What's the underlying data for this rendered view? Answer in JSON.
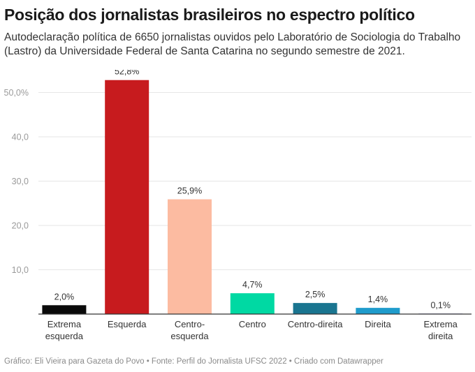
{
  "header": {
    "title": "Posição dos jornalistas brasileiros no espectro político",
    "subtitle": "Autodeclaração política de 6650 jornalistas ouvidos pelo Laboratório de Sociologia do Trabalho (Lastro) da Universidade Federal de Santa Catarina no segundo semestre de 2021."
  },
  "footer": {
    "credit": "Gráfico: Eli Vieira para Gazeta do Povo • Fonte: Perfil do Jornalista UFSC 2022 • Criado com Datawrapper"
  },
  "chart_data": {
    "type": "bar",
    "title": "Posição dos jornalistas brasileiros no espectro político",
    "xlabel": "",
    "ylabel": "",
    "ylim": [
      0,
      55
    ],
    "grid": true,
    "yticks": [
      10,
      20,
      30,
      40,
      50
    ],
    "ytick_labels": [
      "10,0",
      "20,0",
      "30,0",
      "40,0",
      "50,0%"
    ],
    "categories": [
      [
        "Extrema",
        "esquerda"
      ],
      [
        "Esquerda"
      ],
      [
        "Centro-",
        "esquerda"
      ],
      [
        "Centro"
      ],
      [
        "Centro-direita"
      ],
      [
        "Direita"
      ],
      [
        "Extrema",
        "direita"
      ]
    ],
    "values": [
      2.0,
      52.8,
      25.9,
      4.7,
      2.5,
      1.4,
      0.1
    ],
    "data_labels": [
      "2,0%",
      "52,8%",
      "25,9%",
      "4,7%",
      "2,5%",
      "1,4%",
      "0,1%"
    ],
    "colors": [
      "#0a0a0a",
      "#c71b1e",
      "#fcbba1",
      "#00d9a3",
      "#1a7590",
      "#1f9ccc",
      "#2f3a8c"
    ]
  }
}
